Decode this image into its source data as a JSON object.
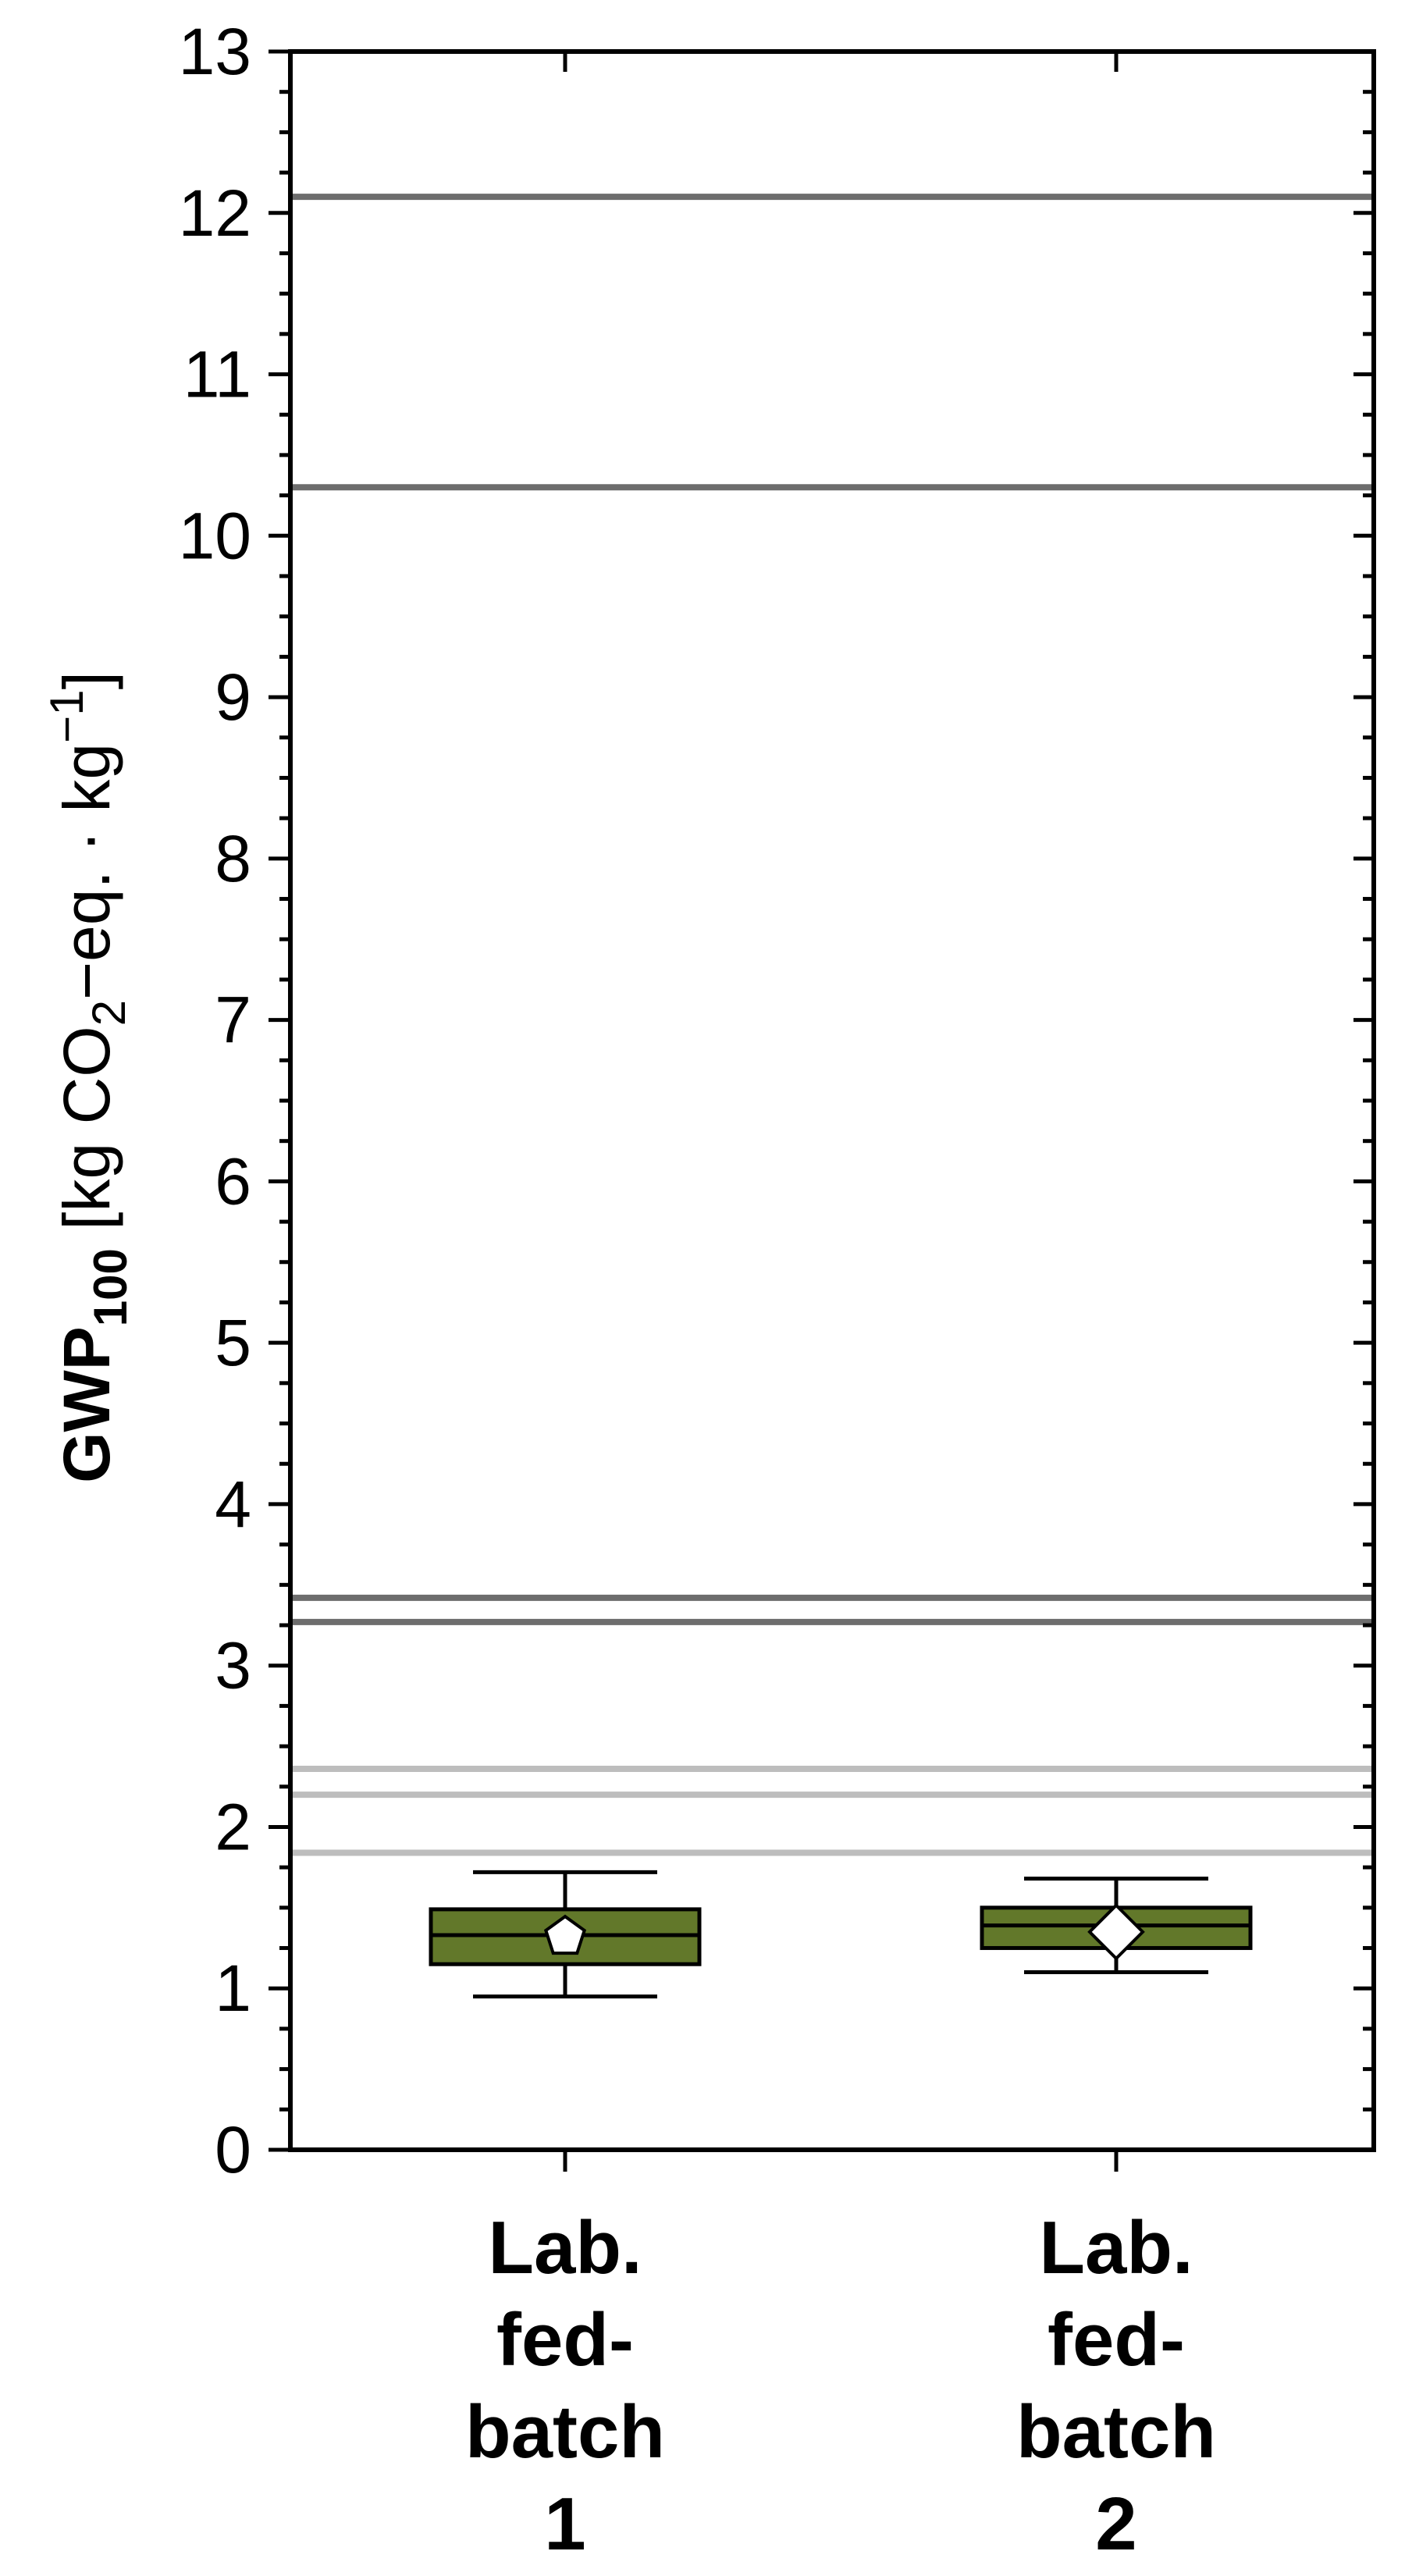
{
  "chart_data": {
    "type": "box",
    "ylabel": {
      "prefix": "GWP",
      "prefix_sub": "100",
      "unit_before_sub": " [kg CO",
      "unit_sub": "2",
      "unit_after_sub": "−eq. · kg",
      "unit_sup": "−1",
      "unit_close": "]"
    },
    "ylim": [
      0,
      13
    ],
    "yticks": [
      0,
      1,
      2,
      3,
      4,
      5,
      6,
      7,
      8,
      9,
      10,
      11,
      12,
      13
    ],
    "yticks_minor_step": 0.25,
    "grid": false,
    "box_color": "#62782a",
    "categories": [
      {
        "lines": [
          "Lab.",
          "fed-",
          "batch",
          "1"
        ]
      },
      {
        "lines": [
          "Lab.",
          "fed-",
          "batch",
          "2"
        ]
      }
    ],
    "boxes": [
      {
        "whisker_low": 0.95,
        "q1": 1.15,
        "median": 1.33,
        "q3": 1.49,
        "whisker_high": 1.72,
        "mean": 1.32,
        "mean_marker": "pentagon"
      },
      {
        "whisker_low": 1.1,
        "q1": 1.25,
        "median": 1.39,
        "q3": 1.5,
        "whisker_high": 1.68,
        "mean": 1.35,
        "mean_marker": "diamond"
      }
    ],
    "reference_lines": [
      {
        "value": 12.1,
        "color": "#6d6d6d"
      },
      {
        "value": 10.3,
        "color": "#6d6d6d"
      },
      {
        "value": 3.42,
        "color": "#6d6d6d"
      },
      {
        "value": 3.27,
        "color": "#6d6d6d"
      },
      {
        "value": 2.36,
        "color": "#bdbdbd"
      },
      {
        "value": 2.2,
        "color": "#bdbdbd"
      },
      {
        "value": 1.84,
        "color": "#bdbdbd"
      }
    ]
  }
}
